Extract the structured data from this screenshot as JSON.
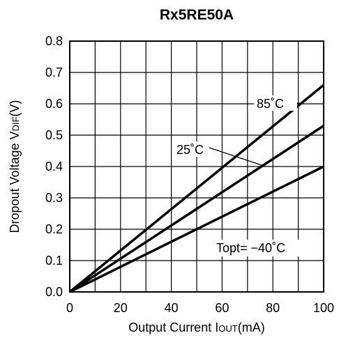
{
  "chart_data": {
    "type": "line",
    "title": "Rx5RE50A",
    "xlabel": {
      "main": "Output Current I",
      "sub": "OUT",
      "unit": "(mA)"
    },
    "ylabel": {
      "main": "Dropout Voltage V",
      "sub": "DIF",
      "unit": "(V)"
    },
    "xlim": [
      0,
      100
    ],
    "ylim": [
      0,
      0.8
    ],
    "xticks": [
      "0",
      "20",
      "40",
      "60",
      "80",
      "100"
    ],
    "yticks": [
      "0.0",
      "0.1",
      "0.2",
      "0.3",
      "0.4",
      "0.5",
      "0.6",
      "0.7",
      "0.8"
    ],
    "grid": true,
    "series": [
      {
        "name": "85˚C",
        "x": [
          0,
          100
        ],
        "y": [
          0,
          0.66
        ]
      },
      {
        "name": "25˚C",
        "x": [
          0,
          100
        ],
        "y": [
          0,
          0.53
        ]
      },
      {
        "name": "Topt= −40˚C",
        "x": [
          0,
          100
        ],
        "y": [
          0,
          0.4
        ]
      }
    ]
  }
}
